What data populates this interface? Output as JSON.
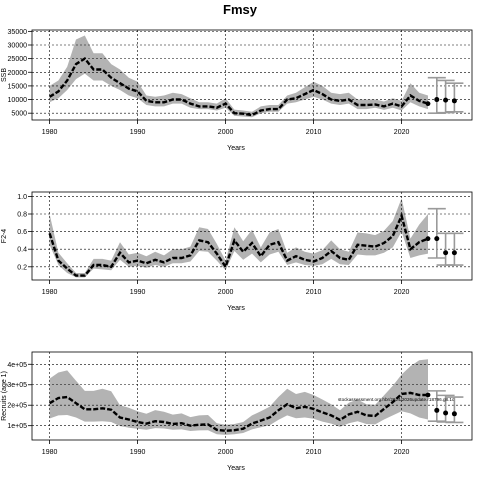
{
  "title": "Fmsy",
  "footnote": "stockassessment.org.hbr/2024/2026update.r18796.g8.1c",
  "chart_data": [
    {
      "type": "area",
      "ylabel": "SSB",
      "xlabel": "Years",
      "xlim": [
        1978,
        2028
      ],
      "ylim": [
        2500,
        35500
      ],
      "xticks": [
        1980,
        1990,
        2000,
        2010,
        2020
      ],
      "yticks": [
        5000,
        10000,
        15000,
        20000,
        25000,
        30000,
        35000
      ],
      "grid": true,
      "series": [
        {
          "x": [
            1980,
            1981,
            1982,
            1983,
            1984,
            1985,
            1986,
            1987,
            1988,
            1989,
            1990,
            1991,
            1992,
            1993,
            1994,
            1995,
            1996,
            1997,
            1998,
            1999,
            2000,
            2001,
            2002,
            2003,
            2004,
            2005,
            2006,
            2007,
            2008,
            2009,
            2010,
            2011,
            2012,
            2013,
            2014,
            2015,
            2016,
            2017,
            2018,
            2019,
            2020,
            2021,
            2022,
            2023
          ],
          "estimate": [
            11000,
            13000,
            17000,
            23000,
            25000,
            21000,
            21000,
            18000,
            16000,
            14000,
            13000,
            9500,
            9000,
            9000,
            10000,
            10000,
            8500,
            7500,
            7500,
            7000,
            8500,
            5000,
            4800,
            4300,
            6000,
            6500,
            6500,
            10000,
            10500,
            12000,
            13500,
            12000,
            10000,
            9500,
            10000,
            8000,
            8000,
            8200,
            7500,
            8500,
            7500,
            11500,
            9500,
            8500
          ],
          "lower": [
            9000,
            10500,
            13500,
            17500,
            19500,
            17000,
            17000,
            15000,
            13500,
            11500,
            10500,
            8000,
            7500,
            7500,
            8500,
            8500,
            7000,
            6500,
            6500,
            6000,
            7000,
            4000,
            3800,
            3500,
            5000,
            5500,
            5500,
            8500,
            9000,
            10000,
            11000,
            10000,
            8500,
            8000,
            8500,
            6500,
            6500,
            7000,
            6200,
            7000,
            6000,
            9000,
            7500,
            6500
          ],
          "upper": [
            15000,
            17000,
            22000,
            32000,
            33500,
            27000,
            27000,
            23000,
            21000,
            18000,
            16500,
            11500,
            11000,
            11500,
            12500,
            12000,
            10500,
            9000,
            9000,
            8500,
            10500,
            6300,
            6000,
            5500,
            7500,
            8000,
            8000,
            11500,
            12500,
            14500,
            16500,
            15000,
            12500,
            12000,
            12500,
            10000,
            10000,
            10000,
            9300,
            10500,
            9500,
            16000,
            12500,
            11500
          ]
        }
      ],
      "forecast": {
        "x": [
          2024,
          2025,
          2026
        ],
        "estimate": [
          10000,
          9800,
          9500
        ],
        "lower": [
          5000,
          5200,
          5500
        ],
        "upper": [
          18000,
          17000,
          16000
        ]
      }
    },
    {
      "type": "area",
      "ylabel": "F2-4",
      "xlabel": "Years",
      "xlim": [
        1978,
        2028
      ],
      "ylim": [
        0.05,
        1.05
      ],
      "xticks": [
        1980,
        1990,
        2000,
        2010,
        2020
      ],
      "yticks": [
        0.2,
        0.4,
        0.6,
        0.8,
        1.0
      ],
      "ytick_labels": [
        "0.2",
        "0.4",
        "0.6",
        "0.8",
        "1.0"
      ],
      "grid": true,
      "series": [
        {
          "x": [
            1980,
            1981,
            1982,
            1983,
            1984,
            1985,
            1986,
            1987,
            1988,
            1989,
            1990,
            1991,
            1992,
            1993,
            1994,
            1995,
            1996,
            1997,
            1998,
            1999,
            2000,
            2001,
            2002,
            2003,
            2004,
            2005,
            2006,
            2007,
            2008,
            2009,
            2010,
            2011,
            2012,
            2013,
            2014,
            2015,
            2016,
            2017,
            2018,
            2019,
            2020,
            2021,
            2022,
            2023
          ],
          "estimate": [
            0.58,
            0.27,
            0.18,
            0.1,
            0.1,
            0.22,
            0.22,
            0.2,
            0.36,
            0.25,
            0.27,
            0.24,
            0.28,
            0.25,
            0.3,
            0.3,
            0.33,
            0.5,
            0.48,
            0.35,
            0.2,
            0.5,
            0.37,
            0.47,
            0.32,
            0.45,
            0.48,
            0.27,
            0.32,
            0.28,
            0.26,
            0.3,
            0.38,
            0.3,
            0.28,
            0.45,
            0.44,
            0.43,
            0.47,
            0.55,
            0.78,
            0.4,
            0.48,
            0.52
          ],
          "lower": [
            0.45,
            0.22,
            0.13,
            0.08,
            0.08,
            0.18,
            0.17,
            0.16,
            0.28,
            0.2,
            0.21,
            0.19,
            0.22,
            0.2,
            0.24,
            0.24,
            0.26,
            0.38,
            0.37,
            0.27,
            0.16,
            0.38,
            0.28,
            0.35,
            0.25,
            0.34,
            0.37,
            0.22,
            0.25,
            0.22,
            0.21,
            0.23,
            0.29,
            0.23,
            0.22,
            0.34,
            0.33,
            0.33,
            0.36,
            0.42,
            0.6,
            0.3,
            0.33,
            0.35
          ],
          "upper": [
            0.8,
            0.36,
            0.24,
            0.13,
            0.13,
            0.29,
            0.29,
            0.27,
            0.48,
            0.34,
            0.36,
            0.32,
            0.37,
            0.33,
            0.4,
            0.4,
            0.43,
            0.65,
            0.63,
            0.46,
            0.27,
            0.65,
            0.49,
            0.62,
            0.42,
            0.59,
            0.63,
            0.36,
            0.42,
            0.37,
            0.35,
            0.39,
            0.5,
            0.4,
            0.37,
            0.59,
            0.58,
            0.56,
            0.61,
            0.72,
            0.98,
            0.52,
            0.68,
            0.8
          ]
        }
      ],
      "forecast": {
        "x": [
          2024,
          2025,
          2026
        ],
        "estimate": [
          0.52,
          0.36,
          0.36
        ],
        "lower": [
          0.3,
          0.22,
          0.22
        ],
        "upper": [
          0.86,
          0.58,
          0.58
        ]
      }
    },
    {
      "type": "area",
      "ylabel": "Recruits (age 1)",
      "xlabel": "Years",
      "xlim": [
        1978,
        2028
      ],
      "ylim": [
        30000,
        460000
      ],
      "xticks": [
        1980,
        1990,
        2000,
        2010,
        2020
      ],
      "yticks": [
        100000,
        200000,
        300000,
        400000
      ],
      "ytick_labels": [
        "1e+05",
        "2e+05",
        "3e+05",
        "4e+05"
      ],
      "grid": true,
      "series": [
        {
          "x": [
            1980,
            1981,
            1982,
            1983,
            1984,
            1985,
            1986,
            1987,
            1988,
            1989,
            1990,
            1991,
            1992,
            1993,
            1994,
            1995,
            1996,
            1997,
            1998,
            1999,
            2000,
            2001,
            2002,
            2003,
            2004,
            2005,
            2006,
            2007,
            2008,
            2009,
            2010,
            2011,
            2012,
            2013,
            2014,
            2015,
            2016,
            2017,
            2018,
            2019,
            2020,
            2021,
            2022,
            2023
          ],
          "estimate": [
            210000,
            235000,
            240000,
            210000,
            180000,
            180000,
            185000,
            178000,
            140000,
            130000,
            118000,
            110000,
            122000,
            118000,
            108000,
            112000,
            100000,
            105000,
            106000,
            80000,
            75000,
            78000,
            85000,
            110000,
            125000,
            140000,
            175000,
            205000,
            185000,
            192000,
            182000,
            165000,
            150000,
            128000,
            155000,
            168000,
            150000,
            148000,
            182000,
            215000,
            255000,
            260000,
            250000,
            250000
          ],
          "lower": [
            135000,
            150000,
            152000,
            140000,
            120000,
            120000,
            122000,
            118000,
            98000,
            90000,
            85000,
            80000,
            88000,
            86000,
            80000,
            82000,
            74000,
            77000,
            78000,
            58000,
            55000,
            58000,
            64000,
            82000,
            92000,
            102000,
            128000,
            150000,
            136000,
            140000,
            134000,
            120000,
            110000,
            94000,
            112000,
            122000,
            108000,
            106000,
            130000,
            150000,
            170000,
            160000,
            140000,
            130000
          ],
          "upper": [
            330000,
            360000,
            370000,
            320000,
            270000,
            270000,
            280000,
            268000,
            200000,
            188000,
            170000,
            158000,
            176000,
            168000,
            154000,
            160000,
            142000,
            150000,
            152000,
            112000,
            105000,
            108000,
            118000,
            150000,
            170000,
            192000,
            240000,
            280000,
            255000,
            265000,
            250000,
            228000,
            205000,
            175000,
            212000,
            228000,
            205000,
            202000,
            248000,
            295000,
            350000,
            390000,
            420000,
            425000
          ]
        }
      ],
      "forecast": {
        "x": [
          2024,
          2025,
          2026
        ],
        "estimate": [
          175000,
          162000,
          158000
        ],
        "lower": [
          122000,
          118000,
          116000
        ],
        "upper": [
          270000,
          248000,
          240000
        ]
      }
    }
  ]
}
